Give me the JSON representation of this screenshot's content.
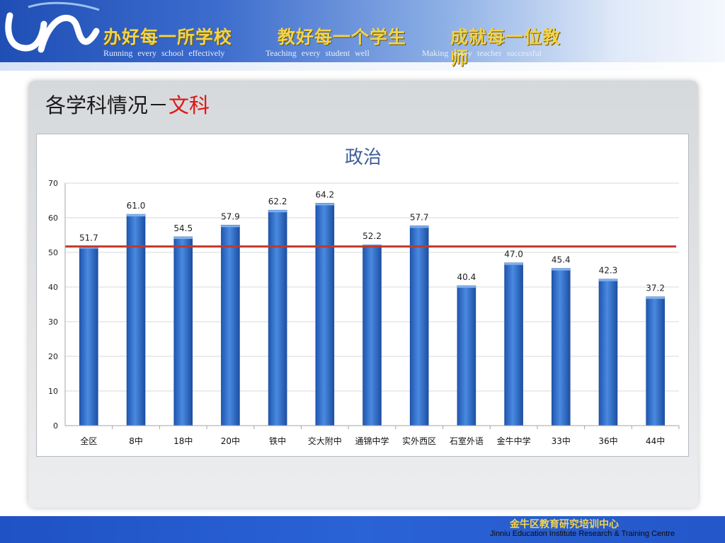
{
  "header": {
    "slogans_cn": [
      "办好每一所学校",
      "教好每一个学生",
      "成就每一位教师"
    ],
    "slogans_en": [
      "Running   every  school  effectively",
      "Teaching   every   student   well",
      "Making  every  teacher  successful"
    ]
  },
  "slide": {
    "title_prefix": "各学科情况－",
    "title_highlight": "文科"
  },
  "chart_data": {
    "type": "bar",
    "title": "政治",
    "categories": [
      "全区",
      "8中",
      "18中",
      "20中",
      "铁中",
      "交大附中",
      "通锦中学",
      "实外西区",
      "石室外语",
      "金牛中学",
      "33中",
      "36中",
      "44中"
    ],
    "values": [
      51.7,
      61.0,
      54.5,
      57.9,
      62.2,
      64.2,
      52.2,
      57.7,
      40.4,
      47.0,
      45.4,
      42.3,
      37.2
    ],
    "data_labels": [
      "51.7",
      "61.0",
      "54.5",
      "57.9",
      "62.2",
      "64.2",
      "52.2",
      "57.7",
      "40.4",
      "47.0",
      "45.4",
      "42.3",
      "37.2"
    ],
    "reference_line": 51.7,
    "ylim": [
      0,
      70
    ],
    "yticks": [
      0,
      10,
      20,
      30,
      40,
      50,
      60,
      70
    ],
    "grid": true,
    "legend": "none",
    "bar_color": "#3a78d2",
    "reference_color": "#c0392b"
  },
  "footer": {
    "org_cn": "金牛区教育研究培训中心",
    "org_en": "Jinniu Education Institute Research & Training Centre"
  }
}
